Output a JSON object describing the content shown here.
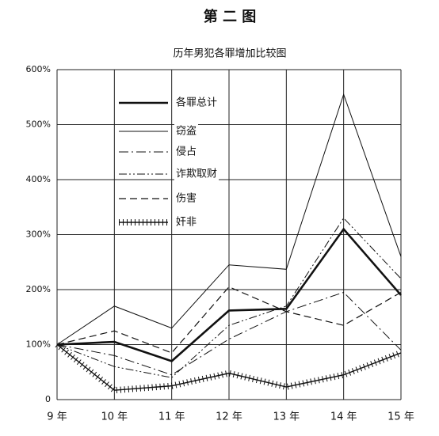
{
  "chart_data": {
    "type": "line",
    "title": "第 二 图",
    "subtitle": "历年男犯各罪增加比较图",
    "categories": [
      "9 年",
      "10 年",
      "11 年",
      "12 年",
      "13 年",
      "14 年",
      "15 年"
    ],
    "series": [
      {
        "name": "各罪总计",
        "color": "#111111",
        "values": [
          100,
          105,
          70,
          162,
          165,
          310,
          190
        ]
      },
      {
        "name": "窃盗",
        "color": "#111111",
        "values": [
          100,
          170,
          130,
          245,
          237,
          555,
          260
        ]
      },
      {
        "name": "侵占",
        "color": "#111111",
        "values": [
          100,
          80,
          45,
          110,
          160,
          195,
          90
        ]
      },
      {
        "name": "诈欺取财",
        "color": "#111111",
        "values": [
          100,
          60,
          40,
          135,
          170,
          330,
          220
        ]
      },
      {
        "name": "伤害",
        "color": "#111111",
        "values": [
          100,
          125,
          85,
          205,
          160,
          135,
          195
        ]
      },
      {
        "name": "奸非",
        "color": "#111111",
        "values": [
          100,
          17,
          25,
          48,
          23,
          45,
          85
        ]
      }
    ],
    "ylim": [
      0,
      600
    ],
    "yticks": [
      0,
      {
        "value": 100,
        "label": "100%"
      },
      {
        "value": 200,
        "label": "200%"
      },
      {
        "value": 300,
        "label": "300%"
      },
      {
        "value": 400,
        "label": "400%"
      },
      {
        "value": 500,
        "label": "500%"
      },
      {
        "value": 600,
        "label": "600%"
      }
    ],
    "grid": true,
    "legend": "upper left"
  }
}
